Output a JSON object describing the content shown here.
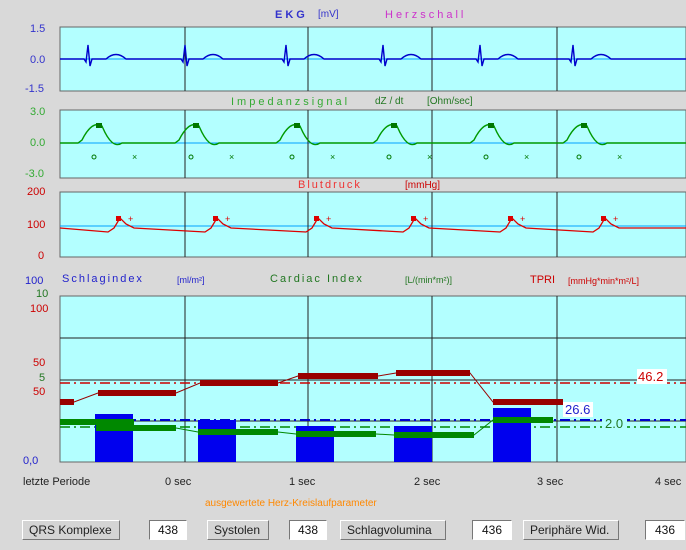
{
  "ekg": {
    "title_a": "EKG",
    "title_b": "[mV]",
    "title_c": "Herzschall",
    "ticks": [
      "1.5",
      "0.0",
      "-1.5"
    ]
  },
  "imp": {
    "title_a": "Impedanzsignal",
    "title_b": "dZ / dt",
    "title_c": "[Ohm/sec]",
    "ticks": [
      "3.0",
      "0.0",
      "-3.0"
    ]
  },
  "bp": {
    "title_a": "Blutdruck",
    "title_b": "[mmHg]",
    "ticks": [
      "200",
      "100",
      "0"
    ]
  },
  "main": {
    "label_si": "Schlagindex",
    "unit_si": "[ml/m²]",
    "label_ci": "Cardiac Index",
    "unit_ci": "[L/(min*m²)]",
    "label_tpri": "TPRI",
    "unit_tpri": "[mmHg*min*m²/L]",
    "ticks_blue": [
      "100",
      "0,0"
    ],
    "ticks_green": [
      "10",
      "5"
    ],
    "ticks_red": [
      "100",
      "50",
      "50",
      "0"
    ],
    "readout_red": "46.2",
    "readout_blue": "26.6",
    "readout_green": "2.0",
    "xlabels": [
      "letzte Periode",
      "0 sec",
      "1 sec",
      "2 sec",
      "3 sec",
      "4 sec"
    ]
  },
  "colors": {
    "panel_bg": "#b3ffff",
    "ekg": "#0000cc",
    "imp": "#009900",
    "bp": "#dd0000",
    "si": "#0000ee",
    "ci": "#007700",
    "tpri": "#990000"
  },
  "footer": {
    "title": "ausgewertete Herz-Kreislaufparameter",
    "items": [
      {
        "label": "QRS Komplexe",
        "value": "438"
      },
      {
        "label": "Systolen",
        "value": "438"
      },
      {
        "label": "Schlagvolumina",
        "value": "436"
      },
      {
        "label": "Periphäre Wid.",
        "value": "436"
      }
    ]
  }
}
